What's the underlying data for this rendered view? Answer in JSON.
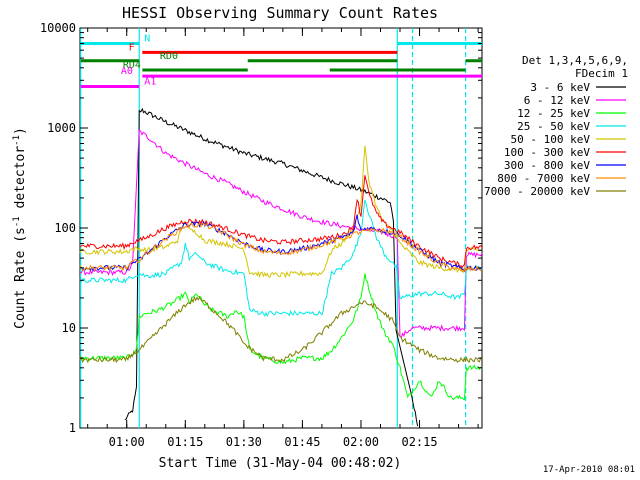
{
  "chart_data": {
    "type": "line",
    "title": "HESSI Observing Summary Count Rates",
    "xlabel": "Start Time (31-May-04 00:48:02)",
    "ylabel_main": "Count Rate (s",
    "ylabel_sup1": "-1",
    "ylabel_mid": " detector",
    "ylabel_sup2": "-1",
    "ylabel_end": ")",
    "x_ticks": [
      "01:00",
      "01:15",
      "01:30",
      "01:45",
      "02:00",
      "02:15"
    ],
    "x_tick_values": [
      60,
      75,
      90,
      105,
      120,
      135
    ],
    "xlim": [
      48.03,
      151
    ],
    "y_scale": "log",
    "ylim": [
      1,
      10000
    ],
    "y_ticks": [
      "1",
      "10",
      "100",
      "1000",
      "10000"
    ],
    "y_tick_values": [
      1,
      10,
      100,
      1000,
      10000
    ],
    "legend_header": [
      "Det 1,3,4,5,6,9,",
      "FDecim 1"
    ],
    "legend_position": "right",
    "vertical_markers": [
      {
        "x": 48.2,
        "color": "#00e8e8",
        "style": "solid"
      },
      {
        "x": 63.2,
        "color": "#00e8e8",
        "style": "solid"
      },
      {
        "x": 129.3,
        "color": "#00e8e8",
        "style": "solid"
      },
      {
        "x": 133.2,
        "color": "#00e8e8",
        "style": "dashed"
      },
      {
        "x": 146.8,
        "color": "#00e8e8",
        "style": "dashed"
      }
    ],
    "flag_bars": [
      {
        "label": "N",
        "y": 7000,
        "color": "#00e8e8",
        "segments": [
          [
            48.2,
            63.2
          ],
          [
            129.3,
            151
          ]
        ],
        "label_x": 64.5
      },
      {
        "label": "F",
        "y": 5700,
        "color": "#ff0000",
        "segments": [
          [
            64,
            129.3
          ]
        ],
        "label_x": 60.5
      },
      {
        "label": "RD0",
        "y": 4700,
        "color": "#008000",
        "segments": [
          [
            48.2,
            63.2
          ],
          [
            91,
            129.3
          ],
          [
            146.8,
            151
          ]
        ],
        "label_x": 68.5
      },
      {
        "label": "RD4",
        "y": 3800,
        "color": "#008000",
        "segments": [
          [
            64,
            91
          ],
          [
            112,
            146.8
          ]
        ],
        "label_x": 59
      },
      {
        "label": "A0",
        "y": 3300,
        "color": "#ff00ff",
        "segments": [
          [
            64,
            151
          ]
        ],
        "label_x": 58.5
      },
      {
        "label": "A1",
        "y": 2600,
        "color": "#ff00ff",
        "segments": [
          [
            48.2,
            63.2
          ]
        ],
        "label_x": 64.5
      }
    ],
    "series": [
      {
        "name": "3 - 6 keV",
        "color": "#000000",
        "points": [
          [
            48.03,
            null
          ],
          [
            59.5,
            1.2
          ],
          [
            61.5,
            1.5
          ],
          [
            62.5,
            2.5
          ],
          [
            63.2,
            1450
          ],
          [
            64,
            1500
          ],
          [
            70,
            1150
          ],
          [
            80,
            780
          ],
          [
            90,
            560
          ],
          [
            100,
            440
          ],
          [
            110,
            320
          ],
          [
            120,
            240
          ],
          [
            125,
            200
          ],
          [
            127.5,
            180
          ],
          [
            128.3,
            120
          ],
          [
            129,
            9
          ],
          [
            133,
            2
          ],
          [
            134.5,
            1.1
          ]
        ]
      },
      {
        "name": "6 - 12 keV",
        "color": "#ff00ff",
        "points": [
          [
            48.03,
            36
          ],
          [
            60,
            36
          ],
          [
            61.5,
            43
          ],
          [
            63.2,
            930
          ],
          [
            66,
            780
          ],
          [
            70,
            560
          ],
          [
            75,
            440
          ],
          [
            80,
            350
          ],
          [
            85,
            290
          ],
          [
            90,
            230
          ],
          [
            95,
            185
          ],
          [
            100,
            155
          ],
          [
            105,
            130
          ],
          [
            110,
            115
          ],
          [
            115,
            105
          ],
          [
            118,
            100
          ],
          [
            122,
            95
          ],
          [
            125,
            92
          ],
          [
            127.5,
            85
          ],
          [
            129.3,
            82
          ],
          [
            130,
            8
          ],
          [
            133,
            10
          ],
          [
            135,
            10
          ],
          [
            139,
            10
          ],
          [
            141,
            10
          ],
          [
            146.5,
            10
          ],
          [
            147,
            54
          ],
          [
            151,
            54
          ]
        ]
      },
      {
        "name": "12 - 25 keV",
        "color": "#00ff00",
        "points": [
          [
            48.03,
            5
          ],
          [
            60,
            5
          ],
          [
            62.5,
            6
          ],
          [
            63.2,
            13
          ],
          [
            65,
            14
          ],
          [
            68,
            15
          ],
          [
            72,
            18
          ],
          [
            75,
            22
          ],
          [
            76,
            18
          ],
          [
            78,
            22
          ],
          [
            80,
            17
          ],
          [
            82,
            15
          ],
          [
            86,
            13
          ],
          [
            88,
            15
          ],
          [
            90,
            13
          ],
          [
            91.5,
            6
          ],
          [
            95,
            5
          ],
          [
            100,
            4.5
          ],
          [
            105,
            5
          ],
          [
            110,
            5
          ],
          [
            112.5,
            6
          ],
          [
            115,
            8
          ],
          [
            118,
            12
          ],
          [
            120,
            20
          ],
          [
            121,
            35
          ],
          [
            122,
            25
          ],
          [
            124,
            14
          ],
          [
            126,
            9
          ],
          [
            128,
            7
          ],
          [
            130,
            4
          ],
          [
            132,
            2
          ],
          [
            135,
            3
          ],
          [
            138,
            2
          ],
          [
            140,
            3
          ],
          [
            143,
            2
          ],
          [
            146.5,
            2
          ],
          [
            147,
            4
          ],
          [
            151,
            4
          ]
        ]
      },
      {
        "name": "25 - 50 keV",
        "color": "#00e8e8",
        "points": [
          [
            48.03,
            30
          ],
          [
            60,
            30
          ],
          [
            61.5,
            33
          ],
          [
            63.2,
            35
          ],
          [
            65,
            33
          ],
          [
            70,
            35
          ],
          [
            72,
            40
          ],
          [
            74,
            45
          ],
          [
            75,
            70
          ],
          [
            76,
            50
          ],
          [
            78,
            55
          ],
          [
            80,
            45
          ],
          [
            85,
            38
          ],
          [
            88,
            36
          ],
          [
            90,
            35
          ],
          [
            91.5,
            15
          ],
          [
            95,
            14
          ],
          [
            100,
            14
          ],
          [
            105,
            14
          ],
          [
            110,
            14
          ],
          [
            112.5,
            35
          ],
          [
            115,
            40
          ],
          [
            118,
            55
          ],
          [
            120,
            90
          ],
          [
            121,
            200
          ],
          [
            122,
            140
          ],
          [
            124,
            80
          ],
          [
            126,
            55
          ],
          [
            128,
            45
          ],
          [
            129,
            40
          ],
          [
            130,
            20
          ],
          [
            135,
            22
          ],
          [
            140,
            22
          ],
          [
            145,
            20
          ],
          [
            146.5,
            22
          ],
          [
            147,
            40
          ],
          [
            151,
            40
          ]
        ]
      },
      {
        "name": "50 - 100 keV",
        "color": "#d4c400",
        "points": [
          [
            48.03,
            58
          ],
          [
            60,
            58
          ],
          [
            61.5,
            62
          ],
          [
            63.2,
            62
          ],
          [
            65,
            60
          ],
          [
            70,
            65
          ],
          [
            73,
            75
          ],
          [
            75,
            120
          ],
          [
            76,
            95
          ],
          [
            78,
            90
          ],
          [
            80,
            75
          ],
          [
            85,
            70
          ],
          [
            88,
            65
          ],
          [
            90,
            62
          ],
          [
            91.5,
            36
          ],
          [
            95,
            34
          ],
          [
            100,
            34
          ],
          [
            105,
            35
          ],
          [
            110,
            35
          ],
          [
            112.5,
            60
          ],
          [
            115,
            70
          ],
          [
            118,
            100
          ],
          [
            120,
            170
          ],
          [
            121,
            650
          ],
          [
            122,
            300
          ],
          [
            124,
            160
          ],
          [
            126,
            110
          ],
          [
            128,
            95
          ],
          [
            130,
            70
          ],
          [
            135,
            45
          ],
          [
            140,
            40
          ],
          [
            145,
            38
          ],
          [
            146.5,
            38
          ],
          [
            147,
            60
          ],
          [
            151,
            60
          ]
        ]
      },
      {
        "name": "100 - 300 keV",
        "color": "#ff0000",
        "points": [
          [
            48.03,
            66
          ],
          [
            60,
            66
          ],
          [
            61.5,
            72
          ],
          [
            63.2,
            75
          ],
          [
            65,
            80
          ],
          [
            70,
            100
          ],
          [
            75,
            118
          ],
          [
            80,
            115
          ],
          [
            85,
            100
          ],
          [
            90,
            85
          ],
          [
            95,
            75
          ],
          [
            100,
            72
          ],
          [
            105,
            75
          ],
          [
            110,
            78
          ],
          [
            115,
            85
          ],
          [
            118,
            100
          ],
          [
            119,
            200
          ],
          [
            120,
            130
          ],
          [
            121,
            350
          ],
          [
            122,
            220
          ],
          [
            124,
            140
          ],
          [
            126,
            110
          ],
          [
            128,
            100
          ],
          [
            130,
            90
          ],
          [
            135,
            65
          ],
          [
            140,
            50
          ],
          [
            145,
            43
          ],
          [
            146.5,
            42
          ],
          [
            147,
            64
          ],
          [
            151,
            64
          ]
        ]
      },
      {
        "name": "300 - 800 keV",
        "color": "#0000ff",
        "points": [
          [
            48.03,
            40
          ],
          [
            60,
            40
          ],
          [
            61.5,
            45
          ],
          [
            63.2,
            48
          ],
          [
            65,
            55
          ],
          [
            70,
            80
          ],
          [
            75,
            108
          ],
          [
            80,
            110
          ],
          [
            85,
            90
          ],
          [
            90,
            70
          ],
          [
            95,
            60
          ],
          [
            100,
            58
          ],
          [
            105,
            62
          ],
          [
            110,
            70
          ],
          [
            115,
            80
          ],
          [
            118,
            90
          ],
          [
            119,
            130
          ],
          [
            120,
            95
          ],
          [
            122,
            100
          ],
          [
            125,
            95
          ],
          [
            128,
            90
          ],
          [
            130,
            85
          ],
          [
            135,
            60
          ],
          [
            140,
            45
          ],
          [
            145,
            40
          ],
          [
            146.5,
            38
          ],
          [
            147,
            40
          ],
          [
            151,
            40
          ]
        ]
      },
      {
        "name": "800 - 7000 keV",
        "color": "#ff8c00",
        "points": [
          [
            48.03,
            40
          ],
          [
            60,
            40
          ],
          [
            61.5,
            45
          ],
          [
            63.2,
            48
          ],
          [
            65,
            55
          ],
          [
            70,
            78
          ],
          [
            75,
            105
          ],
          [
            80,
            108
          ],
          [
            85,
            88
          ],
          [
            90,
            68
          ],
          [
            95,
            58
          ],
          [
            100,
            56
          ],
          [
            105,
            60
          ],
          [
            110,
            68
          ],
          [
            115,
            78
          ],
          [
            120,
            92
          ],
          [
            125,
            95
          ],
          [
            128,
            90
          ],
          [
            130,
            82
          ],
          [
            135,
            58
          ],
          [
            140,
            44
          ],
          [
            145,
            38
          ],
          [
            146.5,
            37
          ],
          [
            147,
            39
          ],
          [
            151,
            39
          ]
        ]
      },
      {
        "name": "7000 - 20000 keV",
        "color": "#808000",
        "points": [
          [
            48.03,
            4.8
          ],
          [
            60,
            4.8
          ],
          [
            61.5,
            5.5
          ],
          [
            63.2,
            6
          ],
          [
            65,
            7
          ],
          [
            70,
            11
          ],
          [
            75,
            17
          ],
          [
            78,
            20
          ],
          [
            80,
            18
          ],
          [
            85,
            12
          ],
          [
            88,
            9
          ],
          [
            90,
            7
          ],
          [
            95,
            5
          ],
          [
            100,
            4.8
          ],
          [
            105,
            6
          ],
          [
            110,
            9
          ],
          [
            115,
            14
          ],
          [
            120,
            18
          ],
          [
            123,
            17
          ],
          [
            126,
            14
          ],
          [
            128,
            12
          ],
          [
            130,
            8
          ],
          [
            135,
            6
          ],
          [
            140,
            5
          ],
          [
            145,
            4.8
          ],
          [
            146.5,
            4.8
          ],
          [
            147,
            4.8
          ],
          [
            151,
            4.8
          ]
        ]
      }
    ],
    "footer_date": "17-Apr-2010 08:01"
  }
}
